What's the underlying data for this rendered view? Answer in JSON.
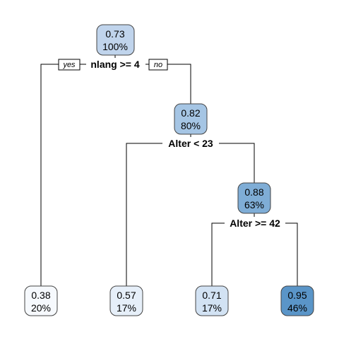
{
  "tree": {
    "branch_labels": {
      "yes": "yes",
      "no": "no"
    },
    "nodes": {
      "root": {
        "value": "0.73",
        "percent": "100%",
        "fill": "#c0d4ec"
      },
      "n2": {
        "value": "0.82",
        "percent": "80%",
        "fill": "#a5c5e4"
      },
      "n3": {
        "value": "0.88",
        "percent": "63%",
        "fill": "#7fadd6"
      },
      "leaf1": {
        "value": "0.38",
        "percent": "20%",
        "fill": "#f6f9fd"
      },
      "leaf2": {
        "value": "0.57",
        "percent": "17%",
        "fill": "#e6eff9"
      },
      "leaf3": {
        "value": "0.71",
        "percent": "17%",
        "fill": "#d2e2f3"
      },
      "leaf4": {
        "value": "0.95",
        "percent": "46%",
        "fill": "#5a95c8"
      }
    },
    "splits": {
      "s1": "nlang >= 4",
      "s2": "Alter < 23",
      "s3": "Alter >= 42"
    }
  }
}
